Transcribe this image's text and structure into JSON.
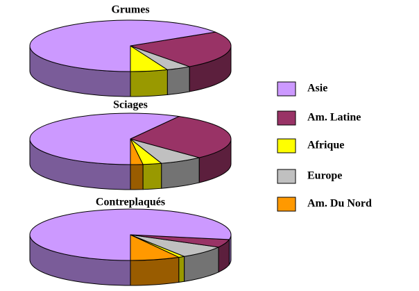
{
  "chart_data": {
    "type": "pie",
    "categories": [
      "Asie",
      "Am. Latine",
      "Afrique",
      "Europe",
      "Am. Du Nord"
    ],
    "colors": [
      "#cc99ff",
      "#993366",
      "#ffff00",
      "#c0c0c0",
      "#ff9900"
    ],
    "charts": [
      {
        "title": "Grumes",
        "values": [
          66,
          24,
          6,
          4,
          0
        ]
      },
      {
        "title": "Sciages",
        "values": [
          58,
          30,
          3,
          7,
          2
        ]
      },
      {
        "title": "Contreplaqués",
        "values": [
          78,
          5,
          1,
          8,
          8
        ]
      }
    ]
  }
}
